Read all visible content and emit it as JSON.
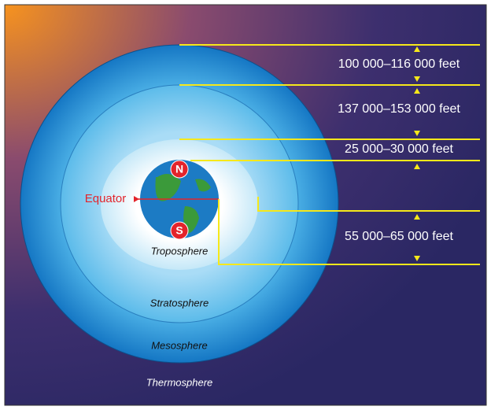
{
  "layers": {
    "troposphere": "Troposphere",
    "stratosphere": "Stratosphere",
    "mesosphere": "Mesosphere",
    "thermosphere": "Thermosphere"
  },
  "earth": {
    "equator": "Equator",
    "north": "N",
    "south": "S"
  },
  "heights": [
    "100 000–116 000 feet",
    "137 000–153 000 feet",
    "25 000–30 000 feet",
    "55 000–65 000 feet"
  ]
}
